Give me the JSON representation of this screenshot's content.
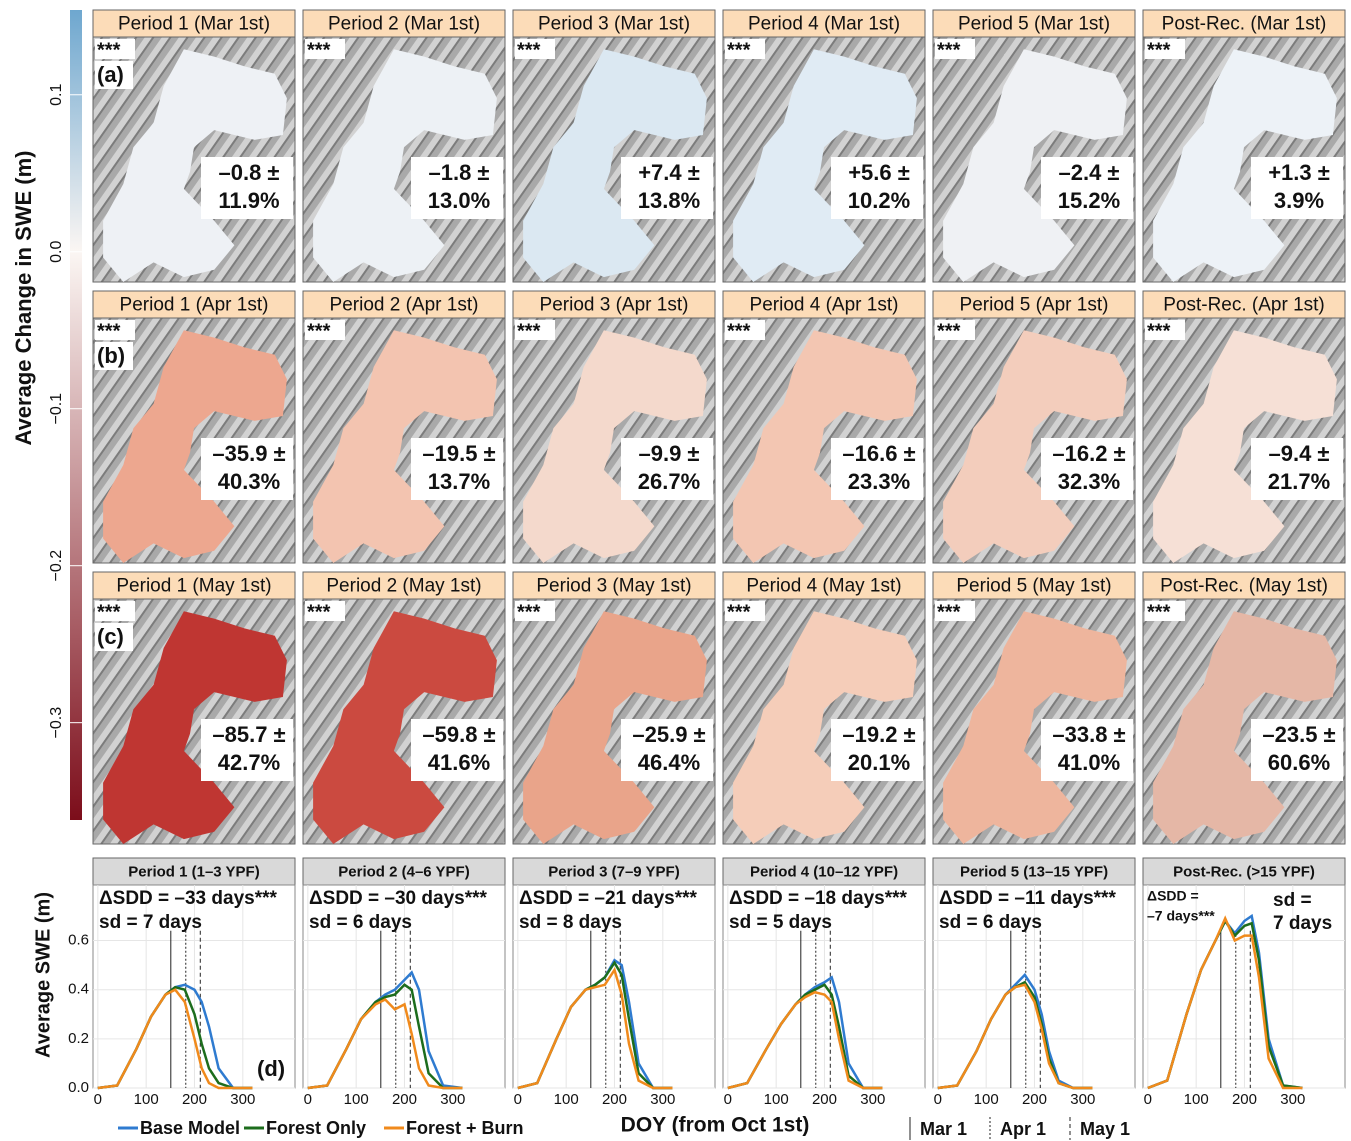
{
  "chart_data": [
    {
      "type": "colorbar",
      "ylabel": "Average Change in SWE (m)",
      "ylim": [
        -0.362,
        0.154
      ],
      "yticks": [
        {
          "value": -0.3,
          "label": "−0.3"
        },
        {
          "value": -0.2,
          "label": "−0.2"
        },
        {
          "value": -0.1,
          "label": "−0.1"
        },
        {
          "value": 0,
          "label": "0.0"
        },
        0.1
      ],
      "colors": {
        "low": "#7c0d1a",
        "mid": "#fbf6f3",
        "high": "#6ea7cf"
      }
    },
    {
      "type": "maps",
      "rows": [
        {
          "label": "(a)",
          "panels": [
            {
              "title": "Period 1 (Mar 1st)",
              "note": "***",
              "change": "–0.8 ±",
              "sd": "11.9%",
              "color": "#eef1f5"
            },
            {
              "title": "Period 2 (Mar 1st)",
              "note": "***",
              "change": "–1.8 ±",
              "sd": "13.0%",
              "color": "#edf1f5"
            },
            {
              "title": "Period 3 (Mar 1st)",
              "note": "***",
              "change": "+7.4 ±",
              "sd": "13.8%",
              "color": "#dbe8f2"
            },
            {
              "title": "Period 4 (Mar 1st)",
              "note": "***",
              "change": "+5.6 ±",
              "sd": "10.2%",
              "color": "#e0ebf4"
            },
            {
              "title": "Period 5 (Mar 1st)",
              "note": "***",
              "change": "–2.4 ±",
              "sd": "15.2%",
              "color": "#eff1f4"
            },
            {
              "title": "Post-Rec. (Mar 1st)",
              "note": "***",
              "change": "+1.3 ±",
              "sd": "3.9%",
              "color": "#edf2f7"
            }
          ]
        },
        {
          "label": "(b)",
          "panels": [
            {
              "title": "Period 1 (Apr 1st)",
              "note": "***",
              "change": "–35.9 ±",
              "sd": "40.3%",
              "color": "#eda78f"
            },
            {
              "title": "Period 2 (Apr 1st)",
              "note": "***",
              "change": "–19.5 ±",
              "sd": "13.7%",
              "color": "#f3c4b0"
            },
            {
              "title": "Period 3 (Apr 1st)",
              "note": "***",
              "change": "–9.9 ±",
              "sd": "26.7%",
              "color": "#f4d9cc"
            },
            {
              "title": "Period 4 (Apr 1st)",
              "note": "***",
              "change": "–16.6 ±",
              "sd": "23.3%",
              "color": "#f3c6b2"
            },
            {
              "title": "Period 5 (Apr 1st)",
              "note": "***",
              "change": "–16.2 ±",
              "sd": "32.3%",
              "color": "#f3cdbc"
            },
            {
              "title": "Post-Rec. (Apr 1st)",
              "note": "***",
              "change": "–9.4 ±",
              "sd": "21.7%",
              "color": "#f6e0d6"
            }
          ]
        },
        {
          "label": "(c)",
          "panels": [
            {
              "title": "Period 1 (May 1st)",
              "note": "***",
              "change": "–85.7 ±",
              "sd": "42.7%",
              "color": "#bf3632"
            },
            {
              "title": "Period 2 (May 1st)",
              "note": "***",
              "change": "–59.8 ±",
              "sd": "41.6%",
              "color": "#cb4a40"
            },
            {
              "title": "Period 3 (May 1st)",
              "note": "***",
              "change": "–25.9 ±",
              "sd": "46.4%",
              "color": "#e9a48a"
            },
            {
              "title": "Period 4 (May 1st)",
              "note": "***",
              "change": "–19.2 ±",
              "sd": "20.1%",
              "color": "#f5cdb9"
            },
            {
              "title": "Period 5 (May 1st)",
              "note": "***",
              "change": "–33.8 ±",
              "sd": "41.0%",
              "color": "#eeb59d"
            },
            {
              "title": "Post-Rec. (May 1st)",
              "note": "***",
              "change": "–23.5 ±",
              "sd": "60.6%",
              "color": "#e5b7a6"
            }
          ]
        }
      ]
    },
    {
      "type": "line",
      "title": "Period 1 (1–3 YPF)",
      "annotation": [
        "ΔSDD = –33 days***",
        "sd = 7 days"
      ],
      "panel_label": "(d)",
      "ylabel": "Average SWE (m)",
      "xlabel": "DOY (from Oct 1st)",
      "xlim": [
        -10,
        408
      ],
      "xticks": [
        0,
        100,
        200,
        300
      ],
      "ylim": [
        0,
        0.826
      ],
      "yticks": [
        {
          "value": 0,
          "label": "0.0"
        },
        0.2,
        0.4,
        0.6
      ],
      "vlines": [
        {
          "value": 151,
          "label": "Mar 1",
          "style": "solid"
        },
        {
          "value": 182,
          "label": "Apr 1",
          "style": "dotted"
        },
        {
          "value": 212,
          "label": "May 1",
          "style": "dashed"
        }
      ],
      "x": [
        0,
        40,
        80,
        110,
        140,
        160,
        180,
        200,
        215,
        230,
        250,
        280,
        320
      ],
      "series": [
        {
          "name": "Base Model",
          "color": "#2f7bd0",
          "values": [
            0,
            0.01,
            0.16,
            0.29,
            0.38,
            0.41,
            0.42,
            0.4,
            0.35,
            0.25,
            0.08,
            0,
            0
          ]
        },
        {
          "name": "Forest Only",
          "color": "#1d6d1d",
          "values": [
            0,
            0.01,
            0.16,
            0.29,
            0.38,
            0.41,
            0.4,
            0.3,
            0.18,
            0.08,
            0.02,
            0,
            0
          ]
        },
        {
          "name": "Forest + Burn",
          "color": "#f08a1c",
          "values": [
            0,
            0.01,
            0.16,
            0.29,
            0.38,
            0.4,
            0.35,
            0.2,
            0.08,
            0.02,
            0,
            0,
            0
          ]
        }
      ]
    },
    {
      "type": "line",
      "title": "Period 2 (4–6 YPF)",
      "annotation": [
        "ΔSDD = –30 days***",
        "sd = 6 days"
      ],
      "xlim": [
        -10,
        408
      ],
      "xticks": [
        0,
        100,
        200,
        300
      ],
      "ylim": [
        0,
        0.826
      ],
      "yticks": [
        {
          "value": 0,
          "label": "0.0"
        },
        0.2,
        0.4,
        0.6
      ],
      "x": [
        0,
        40,
        80,
        110,
        140,
        160,
        180,
        200,
        215,
        230,
        250,
        280,
        320
      ],
      "series": [
        {
          "name": "Base Model",
          "color": "#2f7bd0",
          "values": [
            0,
            0.01,
            0.16,
            0.28,
            0.35,
            0.38,
            0.4,
            0.44,
            0.47,
            0.4,
            0.15,
            0.01,
            0
          ]
        },
        {
          "name": "Forest Only",
          "color": "#1d6d1d",
          "values": [
            0,
            0.01,
            0.16,
            0.28,
            0.35,
            0.37,
            0.38,
            0.42,
            0.4,
            0.25,
            0.06,
            0,
            0
          ]
        },
        {
          "name": "Forest + Burn",
          "color": "#f08a1c",
          "values": [
            0,
            0.01,
            0.16,
            0.28,
            0.34,
            0.36,
            0.32,
            0.34,
            0.22,
            0.08,
            0.01,
            0,
            0
          ]
        }
      ]
    },
    {
      "type": "line",
      "title": "Period 3 (7–9 YPF)",
      "annotation": [
        "ΔSDD = –21 days***",
        "sd = 8 days"
      ],
      "xlim": [
        -10,
        408
      ],
      "xticks": [
        0,
        100,
        200,
        300
      ],
      "ylim": [
        0,
        0.826
      ],
      "yticks": [
        {
          "value": 0,
          "label": "0.0"
        },
        0.2,
        0.4,
        0.6
      ],
      "x": [
        0,
        40,
        80,
        110,
        140,
        160,
        180,
        200,
        215,
        230,
        250,
        280,
        320
      ],
      "series": [
        {
          "name": "Base Model",
          "color": "#2f7bd0",
          "values": [
            0,
            0.02,
            0.2,
            0.33,
            0.4,
            0.42,
            0.45,
            0.52,
            0.5,
            0.35,
            0.1,
            0,
            0
          ]
        },
        {
          "name": "Forest Only",
          "color": "#1d6d1d",
          "values": [
            0,
            0.02,
            0.2,
            0.33,
            0.4,
            0.42,
            0.45,
            0.51,
            0.46,
            0.28,
            0.06,
            0,
            0
          ]
        },
        {
          "name": "Forest + Burn",
          "color": "#f08a1c",
          "values": [
            0,
            0.02,
            0.2,
            0.33,
            0.4,
            0.41,
            0.42,
            0.48,
            0.38,
            0.18,
            0.03,
            0,
            0
          ]
        }
      ]
    },
    {
      "type": "line",
      "title": "Period 4 (10–12 YPF)",
      "annotation": [
        "ΔSDD = –18 days***",
        "sd = 5 days"
      ],
      "xlim": [
        -10,
        408
      ],
      "xticks": [
        0,
        100,
        200,
        300
      ],
      "ylim": [
        0,
        0.826
      ],
      "yticks": [
        {
          "value": 0,
          "label": "0.0"
        },
        0.2,
        0.4,
        0.6
      ],
      "x": [
        0,
        40,
        80,
        110,
        140,
        160,
        180,
        200,
        215,
        230,
        250,
        280,
        320
      ],
      "series": [
        {
          "name": "Base Model",
          "color": "#2f7bd0",
          "values": [
            0,
            0.02,
            0.16,
            0.26,
            0.34,
            0.38,
            0.41,
            0.43,
            0.45,
            0.35,
            0.1,
            0,
            0
          ]
        },
        {
          "name": "Forest Only",
          "color": "#1d6d1d",
          "values": [
            0,
            0.02,
            0.16,
            0.26,
            0.34,
            0.38,
            0.4,
            0.42,
            0.38,
            0.25,
            0.05,
            0,
            0
          ]
        },
        {
          "name": "Forest + Burn",
          "color": "#f08a1c",
          "values": [
            0,
            0.02,
            0.16,
            0.26,
            0.34,
            0.37,
            0.39,
            0.38,
            0.35,
            0.2,
            0.03,
            0,
            0
          ]
        }
      ]
    },
    {
      "type": "line",
      "title": "Period 5 (13–15 YPF)",
      "annotation": [
        "ΔSDD = –11 days***",
        "sd = 6 days"
      ],
      "xlim": [
        -10,
        408
      ],
      "xticks": [
        0,
        100,
        200,
        300
      ],
      "ylim": [
        0,
        0.826
      ],
      "yticks": [
        {
          "value": 0,
          "label": "0.0"
        },
        0.2,
        0.4,
        0.6
      ],
      "x": [
        0,
        40,
        80,
        110,
        140,
        160,
        180,
        200,
        215,
        230,
        250,
        280,
        320
      ],
      "series": [
        {
          "name": "Base Model",
          "color": "#2f7bd0",
          "values": [
            0,
            0.01,
            0.15,
            0.28,
            0.38,
            0.42,
            0.46,
            0.4,
            0.3,
            0.15,
            0.03,
            0,
            0
          ]
        },
        {
          "name": "Forest Only",
          "color": "#1d6d1d",
          "values": [
            0,
            0.01,
            0.15,
            0.28,
            0.38,
            0.41,
            0.43,
            0.37,
            0.26,
            0.12,
            0.02,
            0,
            0
          ]
        },
        {
          "name": "Forest + Burn",
          "color": "#f08a1c",
          "values": [
            0,
            0.01,
            0.15,
            0.28,
            0.38,
            0.41,
            0.42,
            0.35,
            0.24,
            0.1,
            0.02,
            0,
            0
          ]
        }
      ]
    },
    {
      "type": "line",
      "title": "Post-Rec. (>15 YPF)",
      "annotation": [
        "ΔSDD =",
        "–7 days***"
      ],
      "annotation_right": [
        "sd =",
        "7 days"
      ],
      "xlim": [
        -10,
        408
      ],
      "xticks": [
        0,
        100,
        200,
        300
      ],
      "ylim": [
        0,
        0.826
      ],
      "yticks": [
        {
          "value": 0,
          "label": "0.0"
        },
        0.2,
        0.4,
        0.6
      ],
      "x": [
        0,
        40,
        80,
        110,
        140,
        160,
        180,
        200,
        215,
        230,
        250,
        280,
        320
      ],
      "series": [
        {
          "name": "Base Model",
          "color": "#2f7bd0",
          "values": [
            0,
            0.03,
            0.3,
            0.48,
            0.6,
            0.68,
            0.63,
            0.68,
            0.7,
            0.55,
            0.2,
            0.01,
            0
          ]
        },
        {
          "name": "Forest Only",
          "color": "#1d6d1d",
          "values": [
            0,
            0.03,
            0.3,
            0.48,
            0.6,
            0.68,
            0.62,
            0.66,
            0.67,
            0.52,
            0.17,
            0.01,
            0
          ]
        },
        {
          "name": "Forest + Burn",
          "color": "#f08a1c",
          "values": [
            0,
            0.03,
            0.3,
            0.48,
            0.6,
            0.69,
            0.6,
            0.62,
            0.62,
            0.45,
            0.12,
            0,
            0
          ]
        }
      ]
    }
  ]
}
